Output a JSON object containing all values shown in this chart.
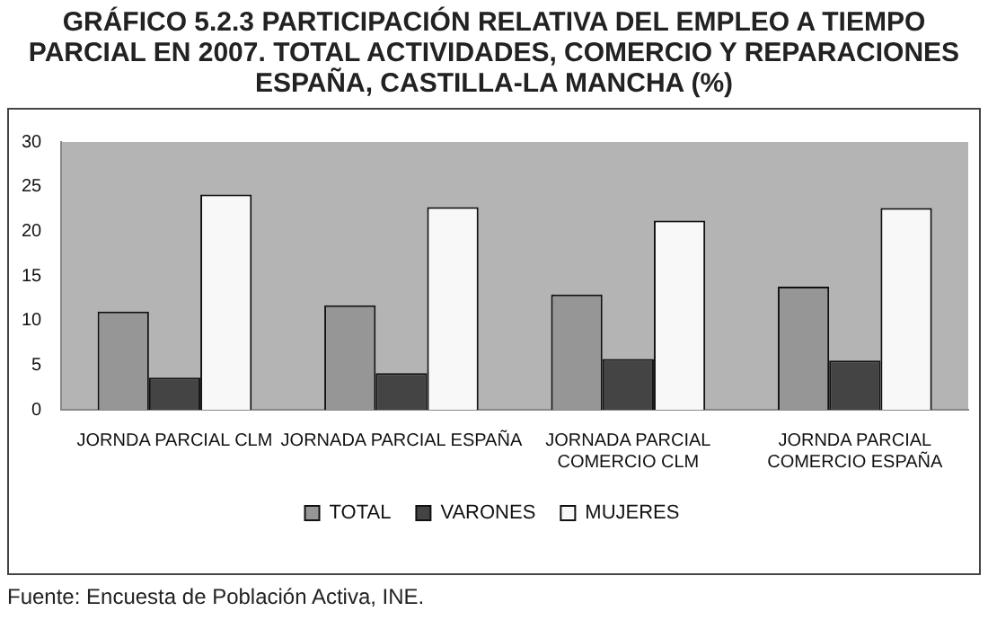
{
  "chart_data": {
    "type": "bar",
    "title": "GRÁFICO 5.2.3 PARTICIPACIÓN RELATIVA DEL EMPLEO A TIEMPO PARCIAL EN 2007. TOTAL ACTIVIDADES, COMERCIO Y REPARACIONES ESPAÑA, CASTILLA-LA MANCHA (%)",
    "categories": [
      "JORNDA PARCIAL CLM",
      "JORNADA PARCIAL ESPAÑA",
      "JORNADA PARCIAL COMERCIO CLM",
      "JORNDA PARCIAL COMERCIO ESPAÑA"
    ],
    "series": [
      {
        "name": "TOTAL",
        "color": "#969696",
        "values": [
          11.0,
          11.7,
          12.9,
          13.8
        ]
      },
      {
        "name": "VARONES",
        "color": "#444444",
        "values": [
          3.6,
          4.1,
          5.7,
          5.5
        ]
      },
      {
        "name": "MUJERES",
        "color": "#f8f8f8",
        "values": [
          24.1,
          22.7,
          21.2,
          22.6
        ]
      }
    ],
    "ylim": [
      0,
      30
    ],
    "yticks": [
      0,
      5,
      10,
      15,
      20,
      25,
      30
    ],
    "grid": false,
    "legend": "bottom",
    "annotations": [
      "Fuente: Encuesta de Población Activa, INE."
    ]
  }
}
